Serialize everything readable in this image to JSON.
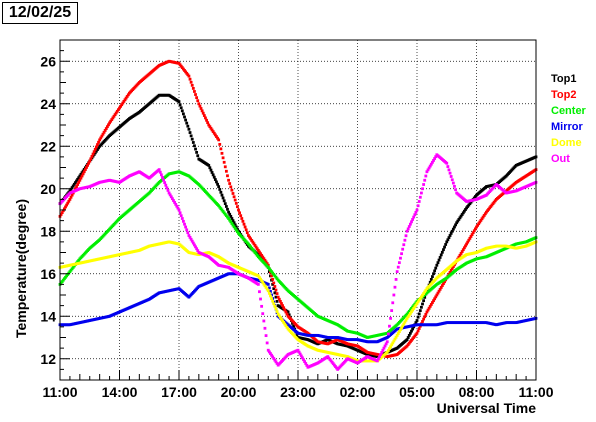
{
  "header": {
    "date": "12/02/25"
  },
  "chart_data": {
    "type": "scatter",
    "title": "",
    "xlabel": "Universal Time",
    "ylabel": "Temperature(degree)",
    "xlim": [
      0,
      24
    ],
    "ylim": [
      11,
      27
    ],
    "x_tick_labels": [
      "11:00",
      "14:00",
      "17:00",
      "20:00",
      "23:00",
      "02:00",
      "05:00",
      "08:00",
      "11:00"
    ],
    "y_ticks": [
      12,
      14,
      16,
      18,
      20,
      22,
      24,
      26
    ],
    "x_unit_note": "hours since 11:00",
    "grid": true,
    "legend_position": "right",
    "series": [
      {
        "name": "Top1",
        "color": "#000000",
        "x": [
          0,
          0.5,
          1,
          1.5,
          2,
          2.5,
          3,
          3.5,
          4,
          4.5,
          5,
          5.5,
          6,
          6.5,
          7,
          7.5,
          8,
          8.5,
          9,
          9.5,
          10,
          10.5,
          11,
          11.5,
          12,
          12.5,
          13,
          13.5,
          14,
          14.5,
          15,
          15.5,
          16,
          16.5,
          17,
          17.5,
          18,
          18.5,
          19,
          19.5,
          20,
          20.5,
          21,
          21.5,
          22,
          22.5,
          23,
          23.5,
          24
        ],
        "y": [
          19.3,
          19.9,
          20.6,
          21.3,
          22.0,
          22.5,
          22.9,
          23.3,
          23.6,
          24.0,
          24.4,
          24.4,
          24.1,
          22.8,
          21.4,
          21.1,
          20.1,
          18.9,
          18.0,
          17.3,
          16.9,
          16.3,
          14.5,
          14.2,
          13.0,
          12.9,
          12.7,
          12.9,
          12.7,
          12.6,
          12.4,
          12.2,
          12.1,
          12.3,
          12.5,
          12.9,
          13.8,
          15.2,
          16.4,
          17.5,
          18.4,
          19.1,
          19.7,
          20.1,
          20.2,
          20.6,
          21.1,
          21.3,
          21.5
        ]
      },
      {
        "name": "Top2",
        "color": "#ff0000",
        "x": [
          0,
          0.5,
          1,
          1.5,
          2,
          2.5,
          3,
          3.5,
          4,
          4.5,
          5,
          5.5,
          6,
          6.5,
          7,
          7.5,
          8,
          8.5,
          9,
          9.5,
          10,
          10.5,
          11,
          11.5,
          12,
          12.5,
          13,
          13.5,
          14,
          14.5,
          15,
          15.5,
          16,
          16.5,
          17,
          17.5,
          18,
          18.5,
          19,
          19.5,
          20,
          20.5,
          21,
          21.5,
          22,
          22.5,
          23,
          23.5,
          24
        ],
        "y": [
          18.7,
          19.5,
          20.4,
          21.3,
          22.3,
          23.1,
          23.8,
          24.5,
          25.0,
          25.4,
          25.8,
          26.0,
          25.9,
          25.3,
          24.0,
          23.0,
          22.3,
          20.4,
          19.0,
          17.8,
          17.1,
          16.4,
          14.9,
          14.0,
          13.5,
          13.2,
          12.8,
          12.7,
          12.9,
          12.7,
          12.6,
          12.3,
          12.2,
          12.1,
          12.2,
          12.6,
          13.2,
          14.2,
          15.0,
          15.8,
          16.6,
          17.4,
          18.2,
          18.9,
          19.5,
          19.9,
          20.3,
          20.6,
          20.9
        ]
      },
      {
        "name": "Center",
        "color": "#00ee00",
        "x": [
          0,
          0.5,
          1,
          1.5,
          2,
          2.5,
          3,
          3.5,
          4,
          4.5,
          5,
          5.5,
          6,
          6.5,
          7,
          7.5,
          8,
          8.5,
          9,
          9.5,
          10,
          10.5,
          11,
          11.5,
          12,
          12.5,
          13,
          13.5,
          14,
          14.5,
          15,
          15.5,
          16,
          16.5,
          17,
          17.5,
          18,
          18.5,
          19,
          19.5,
          20,
          20.5,
          21,
          21.5,
          22,
          22.5,
          23,
          23.5,
          24
        ],
        "y": [
          15.5,
          16.1,
          16.7,
          17.2,
          17.6,
          18.1,
          18.6,
          19.0,
          19.4,
          19.8,
          20.3,
          20.7,
          20.8,
          20.6,
          20.2,
          19.7,
          19.2,
          18.6,
          17.9,
          17.4,
          16.8,
          16.3,
          15.7,
          15.2,
          14.8,
          14.4,
          14.0,
          13.8,
          13.6,
          13.3,
          13.2,
          13.0,
          13.1,
          13.2,
          13.6,
          14.1,
          14.7,
          15.1,
          15.5,
          15.8,
          16.2,
          16.5,
          16.7,
          16.8,
          17.0,
          17.2,
          17.4,
          17.5,
          17.7
        ]
      },
      {
        "name": "Mirror",
        "color": "#0000ee",
        "x": [
          0,
          0.5,
          1,
          1.5,
          2,
          2.5,
          3,
          3.5,
          4,
          4.5,
          5,
          5.5,
          6,
          6.5,
          7,
          7.5,
          8,
          8.5,
          9,
          9.5,
          10,
          10.5,
          11,
          11.5,
          12,
          12.5,
          13,
          13.5,
          14,
          14.5,
          15,
          15.5,
          16,
          16.5,
          17,
          17.5,
          18,
          18.5,
          19,
          19.5,
          20,
          20.5,
          21,
          21.5,
          22,
          22.5,
          23,
          23.5,
          24
        ],
        "y": [
          13.6,
          13.6,
          13.7,
          13.8,
          13.9,
          14.0,
          14.2,
          14.4,
          14.6,
          14.8,
          15.1,
          15.2,
          15.3,
          14.9,
          15.4,
          15.6,
          15.8,
          16.0,
          16.0,
          15.8,
          15.7,
          15.5,
          14.0,
          13.6,
          13.2,
          13.1,
          13.1,
          13.0,
          13.0,
          12.9,
          12.9,
          12.8,
          12.8,
          13.0,
          13.4,
          13.5,
          13.6,
          13.6,
          13.6,
          13.7,
          13.7,
          13.7,
          13.7,
          13.7,
          13.6,
          13.7,
          13.7,
          13.8,
          13.9
        ]
      },
      {
        "name": "Dome",
        "color": "#ffff00",
        "x": [
          0,
          0.5,
          1,
          1.5,
          2,
          2.5,
          3,
          3.5,
          4,
          4.5,
          5,
          5.5,
          6,
          6.5,
          7,
          7.5,
          8,
          8.5,
          9,
          9.5,
          10,
          10.5,
          11,
          11.5,
          12,
          12.5,
          13,
          13.5,
          14,
          14.5,
          15,
          15.5,
          16,
          16.5,
          17,
          17.5,
          18,
          18.5,
          19,
          19.5,
          20,
          20.5,
          21,
          21.5,
          22,
          22.5,
          23,
          23.5,
          24
        ],
        "y": [
          16.3,
          16.4,
          16.5,
          16.6,
          16.7,
          16.8,
          16.9,
          17.0,
          17.1,
          17.3,
          17.4,
          17.5,
          17.4,
          17.0,
          16.9,
          17.0,
          16.8,
          16.5,
          16.3,
          16.1,
          15.9,
          15.2,
          14.1,
          13.4,
          12.9,
          12.6,
          12.4,
          12.3,
          12.2,
          12.1,
          11.9,
          11.9,
          11.9,
          12.3,
          13.1,
          13.9,
          14.6,
          15.3,
          15.8,
          16.2,
          16.6,
          16.9,
          17.0,
          17.2,
          17.3,
          17.3,
          17.2,
          17.3,
          17.5
        ]
      },
      {
        "name": "Out",
        "color": "#ff00ff",
        "x": [
          0,
          0.5,
          1,
          1.5,
          2,
          2.5,
          3,
          3.5,
          4,
          4.5,
          5,
          5.5,
          6,
          6.5,
          7,
          7.5,
          8,
          8.5,
          9,
          9.5,
          10,
          10.5,
          11,
          11.5,
          12,
          12.5,
          13,
          13.5,
          14,
          14.5,
          15,
          15.5,
          16,
          16.5,
          17,
          17.5,
          18,
          18.5,
          19,
          19.5,
          20,
          20.5,
          21,
          21.5,
          22,
          22.5,
          23,
          23.5,
          24
        ],
        "y": [
          19.3,
          19.8,
          20.0,
          20.1,
          20.3,
          20.4,
          20.3,
          20.6,
          20.8,
          20.5,
          20.9,
          19.8,
          19.0,
          17.8,
          17.0,
          16.8,
          16.4,
          16.3,
          16.0,
          15.8,
          15.5,
          12.4,
          11.7,
          12.2,
          12.4,
          11.6,
          11.8,
          12.1,
          11.5,
          12.0,
          11.8,
          12.1,
          11.9,
          12.8,
          16.1,
          18.0,
          19.0,
          20.8,
          21.6,
          21.2,
          19.8,
          19.4,
          19.5,
          19.7,
          20.2,
          19.8,
          19.9,
          20.1,
          20.3
        ]
      }
    ]
  }
}
